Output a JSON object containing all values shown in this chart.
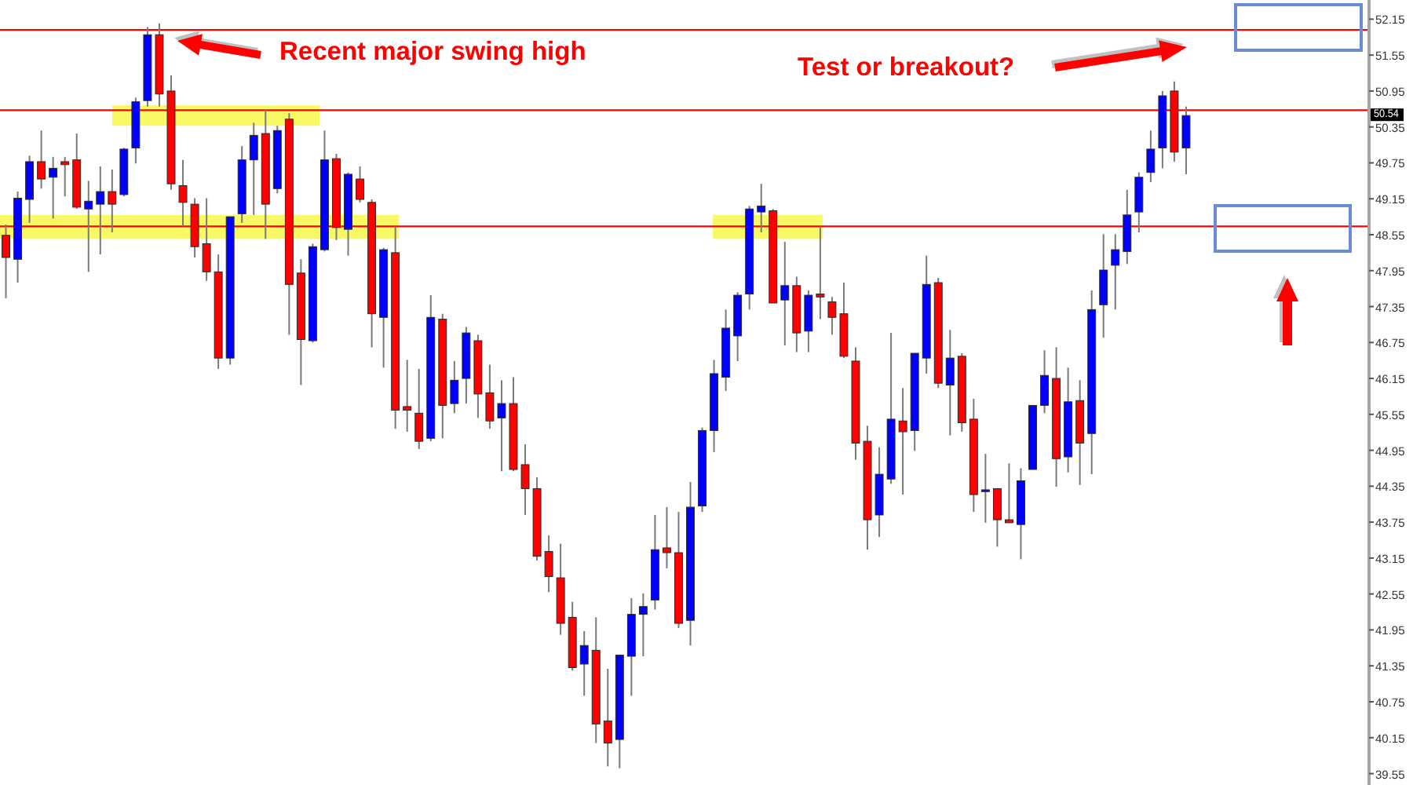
{
  "chart_data": {
    "type": "candlestick",
    "categories": [
      null,
      null,
      null,
      null,
      null,
      null,
      null,
      null,
      null,
      null,
      null,
      null,
      null,
      null,
      null,
      null,
      null,
      null,
      null,
      null,
      null,
      null,
      null,
      null,
      null,
      null,
      null,
      null,
      null,
      null,
      null,
      null,
      null,
      null,
      null,
      null,
      null,
      null,
      null,
      null,
      null,
      null,
      null,
      null,
      null,
      null,
      null,
      null,
      null,
      null,
      null,
      null,
      null,
      null,
      null,
      null,
      null,
      null,
      null,
      null,
      null,
      null,
      null,
      null,
      null,
      null,
      null,
      null,
      null,
      null,
      null,
      null,
      null,
      null,
      null,
      null,
      null,
      null,
      null,
      null,
      null,
      null,
      null,
      null,
      null,
      null,
      null,
      null,
      null,
      null,
      null,
      null,
      null,
      null,
      null,
      null,
      null,
      null,
      null,
      null,
      null,
      null,
      null,
      null,
      null,
      null,
      null,
      null,
      null,
      null,
      null,
      null,
      null,
      null,
      null,
      null
    ],
    "ohlc": [
      [
        48.54,
        48.72,
        47.49,
        48.17
      ],
      [
        48.14,
        49.27,
        47.75,
        49.16
      ],
      [
        49.14,
        49.87,
        48.75,
        49.77
      ],
      [
        49.77,
        50.29,
        49.32,
        49.48
      ],
      [
        49.51,
        49.85,
        48.82,
        49.66
      ],
      [
        49.77,
        49.85,
        49.19,
        49.72
      ],
      [
        49.8,
        50.24,
        48.98,
        49.01
      ],
      [
        48.98,
        49.45,
        47.93,
        49.11
      ],
      [
        49.06,
        49.69,
        48.22,
        49.27
      ],
      [
        49.27,
        49.64,
        48.59,
        49.06
      ],
      [
        49.22,
        50.0,
        49.19,
        49.98
      ],
      [
        50.0,
        50.84,
        49.74,
        50.77
      ],
      [
        50.79,
        52.02,
        50.69,
        51.89
      ],
      [
        51.89,
        52.08,
        50.69,
        50.9
      ],
      [
        50.95,
        51.21,
        49.3,
        49.4
      ],
      [
        49.37,
        49.8,
        48.69,
        49.09
      ],
      [
        49.06,
        49.16,
        48.17,
        48.35
      ],
      [
        48.4,
        49.16,
        47.78,
        47.93
      ],
      [
        47.93,
        48.22,
        46.31,
        46.49
      ],
      [
        46.49,
        48.85,
        46.38,
        48.85
      ],
      [
        48.9,
        50.03,
        48.75,
        49.8
      ],
      [
        49.8,
        50.42,
        48.88,
        50.21
      ],
      [
        50.24,
        50.63,
        48.48,
        49.06
      ],
      [
        49.32,
        50.37,
        49.24,
        50.29
      ],
      [
        50.48,
        50.58,
        46.88,
        47.72
      ],
      [
        47.91,
        48.14,
        46.04,
        46.8
      ],
      [
        46.78,
        48.4,
        46.75,
        48.35
      ],
      [
        48.3,
        50.29,
        48.27,
        49.8
      ],
      [
        49.82,
        49.9,
        48.46,
        48.67
      ],
      [
        48.64,
        49.59,
        48.2,
        49.56
      ],
      [
        49.48,
        49.69,
        49.09,
        49.14
      ],
      [
        49.09,
        49.14,
        46.67,
        47.23
      ],
      [
        47.17,
        48.33,
        46.33,
        48.3
      ],
      [
        48.25,
        48.69,
        45.31,
        45.62
      ],
      [
        45.68,
        46.46,
        45.26,
        45.62
      ],
      [
        45.57,
        46.31,
        44.97,
        45.1
      ],
      [
        45.15,
        47.54,
        45.1,
        47.17
      ],
      [
        47.14,
        47.23,
        45.15,
        45.7
      ],
      [
        45.73,
        46.44,
        45.57,
        46.12
      ],
      [
        46.15,
        47.01,
        45.73,
        46.91
      ],
      [
        46.78,
        46.88,
        45.49,
        45.89
      ],
      [
        45.91,
        46.38,
        45.31,
        45.44
      ],
      [
        45.49,
        46.12,
        44.6,
        45.73
      ],
      [
        45.73,
        46.17,
        44.6,
        44.63
      ],
      [
        44.71,
        45.05,
        43.87,
        44.31
      ],
      [
        44.31,
        44.5,
        43.11,
        43.18
      ],
      [
        43.26,
        43.53,
        42.58,
        42.84
      ],
      [
        42.82,
        43.39,
        41.87,
        42.06
      ],
      [
        42.16,
        42.42,
        41.27,
        41.32
      ],
      [
        41.38,
        41.93,
        40.85,
        41.69
      ],
      [
        41.61,
        42.16,
        40.06,
        40.38
      ],
      [
        40.43,
        41.3,
        39.67,
        40.06
      ],
      [
        40.12,
        41.53,
        39.64,
        41.53
      ],
      [
        41.51,
        42.48,
        40.85,
        42.21
      ],
      [
        42.21,
        42.56,
        41.51,
        42.34
      ],
      [
        42.45,
        43.87,
        42.29,
        43.29
      ],
      [
        43.32,
        44.0,
        42.98,
        43.24
      ],
      [
        43.24,
        43.92,
        41.98,
        42.06
      ],
      [
        42.11,
        44.42,
        41.69,
        44.0
      ],
      [
        44.02,
        45.33,
        43.92,
        45.28
      ],
      [
        45.28,
        46.46,
        44.92,
        46.23
      ],
      [
        46.17,
        47.3,
        45.94,
        46.99
      ],
      [
        46.86,
        47.59,
        46.44,
        47.54
      ],
      [
        47.56,
        49.03,
        47.3,
        48.98
      ],
      [
        48.93,
        49.4,
        48.59,
        49.03
      ],
      [
        48.95,
        48.98,
        47.41,
        47.41
      ],
      [
        47.46,
        48.43,
        46.7,
        47.7
      ],
      [
        47.7,
        47.85,
        46.59,
        46.91
      ],
      [
        46.94,
        47.62,
        46.59,
        47.54
      ],
      [
        47.56,
        48.67,
        47.14,
        47.51
      ],
      [
        47.43,
        47.51,
        46.88,
        47.17
      ],
      [
        47.23,
        47.75,
        46.49,
        46.52
      ],
      [
        46.44,
        46.67,
        44.79,
        45.07
      ],
      [
        45.1,
        45.36,
        43.29,
        43.79
      ],
      [
        43.87,
        45.0,
        43.5,
        44.55
      ],
      [
        44.47,
        46.91,
        44.39,
        45.47
      ],
      [
        45.44,
        45.99,
        44.21,
        45.26
      ],
      [
        45.28,
        46.57,
        44.94,
        46.57
      ],
      [
        46.49,
        48.2,
        46.23,
        47.72
      ],
      [
        47.75,
        47.83,
        45.99,
        46.07
      ],
      [
        46.04,
        46.96,
        45.2,
        46.49
      ],
      [
        46.52,
        46.57,
        45.26,
        45.41
      ],
      [
        45.47,
        45.81,
        43.92,
        44.21
      ],
      [
        44.26,
        44.89,
        43.74,
        44.29
      ],
      [
        44.31,
        44.31,
        43.34,
        43.79
      ],
      [
        43.79,
        44.73,
        43.74,
        43.74
      ],
      [
        43.71,
        44.65,
        43.13,
        44.44
      ],
      [
        44.63,
        45.7,
        44.63,
        45.7
      ],
      [
        45.7,
        46.62,
        45.57,
        46.2
      ],
      [
        46.15,
        46.67,
        44.34,
        44.81
      ],
      [
        44.84,
        46.33,
        44.58,
        45.76
      ],
      [
        45.78,
        46.12,
        44.37,
        45.07
      ],
      [
        45.23,
        47.62,
        44.55,
        47.3
      ],
      [
        47.38,
        48.56,
        46.83,
        47.96
      ],
      [
        48.04,
        48.56,
        47.3,
        48.3
      ],
      [
        48.27,
        49.3,
        48.06,
        48.88
      ],
      [
        48.93,
        49.59,
        48.59,
        49.51
      ],
      [
        49.59,
        50.29,
        49.43,
        49.98
      ],
      [
        50.0,
        50.95,
        49.66,
        50.87
      ],
      [
        50.95,
        51.11,
        49.77,
        49.93
      ],
      [
        50.0,
        50.69,
        49.56,
        50.54
      ],
      null,
      null,
      null,
      null,
      null,
      null,
      null,
      null,
      null,
      null,
      null,
      null,
      null,
      null,
      null
    ],
    "colors": [
      "#ff0000",
      "#0000ff",
      "#0000ff",
      "#ff0000",
      "#0000ff",
      "#ff0000",
      "#ff0000",
      "#0000ff",
      "#0000ff",
      "#ff0000",
      "#0000ff",
      "#0000ff",
      "#0000ff",
      "#ff0000",
      "#ff0000",
      "#ff0000",
      "#ff0000",
      "#ff0000",
      "#ff0000",
      "#0000ff",
      "#0000ff",
      "#0000ff",
      "#ff0000",
      "#0000ff",
      "#ff0000",
      "#ff0000",
      "#0000ff",
      "#0000ff",
      "#ff0000",
      "#0000ff",
      "#ff0000",
      "#ff0000",
      "#0000ff",
      "#ff0000",
      "#ff0000",
      "#ff0000",
      "#0000ff",
      "#ff0000",
      "#0000ff",
      "#0000ff",
      "#ff0000",
      "#ff0000",
      "#0000ff",
      "#ff0000",
      "#ff0000",
      "#ff0000",
      "#ff0000",
      "#ff0000",
      "#ff0000",
      "#0000ff",
      "#ff0000",
      "#ff0000",
      "#0000ff",
      "#0000ff",
      "#0000ff",
      "#0000ff",
      "#ff0000",
      "#ff0000",
      "#0000ff",
      "#0000ff",
      "#0000ff",
      "#0000ff",
      "#0000ff",
      "#0000ff",
      "#0000ff",
      "#ff0000",
      "#0000ff",
      "#ff0000",
      "#0000ff",
      "#ff0000",
      "#ff0000",
      "#ff0000",
      "#ff0000",
      "#ff0000",
      "#0000ff",
      "#0000ff",
      "#ff0000",
      "#0000ff",
      "#0000ff",
      "#ff0000",
      "#0000ff",
      "#ff0000",
      "#ff0000",
      "#0000ff",
      "#ff0000",
      "#ff0000",
      "#0000ff",
      "#0000ff",
      "#0000ff",
      "#ff0000",
      "#0000ff",
      "#ff0000",
      "#0000ff",
      "#0000ff",
      "#0000ff",
      "#0000ff",
      "#0000ff",
      "#0000ff",
      "#0000ff",
      "#ff0000",
      "#0000ff",
      null,
      null,
      null,
      null,
      null,
      null,
      null,
      null,
      null,
      null,
      null,
      null,
      null,
      null,
      null
    ],
    "ylim": [
      39.36,
      52.47
    ],
    "yticks": [
      52.15,
      51.55,
      50.95,
      50.35,
      49.75,
      49.15,
      48.55,
      47.95,
      47.35,
      46.75,
      46.15,
      45.55,
      44.95,
      44.35,
      43.75,
      43.15,
      42.55,
      41.95,
      41.35,
      40.75,
      40.15,
      39.55
    ],
    "tick_labels": "y",
    "ref_lines": [
      {
        "axis": "y",
        "value": 51.97,
        "color": "#ff0000"
      },
      {
        "axis": "y",
        "value": 50.63,
        "color": "#ff0000"
      },
      {
        "axis": "y",
        "value": 48.69,
        "color": "#ff0000"
      }
    ],
    "bands": [
      {
        "axis": "y",
        "from": 50.37,
        "to": 50.71,
        "color": "#f8f84a"
      },
      {
        "axis": "y",
        "from": 48.48,
        "to": 48.88,
        "color": "#f8f84a"
      },
      {
        "axis": "y",
        "from": 48.48,
        "to": 48.88,
        "color": "#f8f84a"
      }
    ],
    "annotations": [
      "Recent major swing high",
      "Test or breakout?",
      "50.54"
    ]
  }
}
